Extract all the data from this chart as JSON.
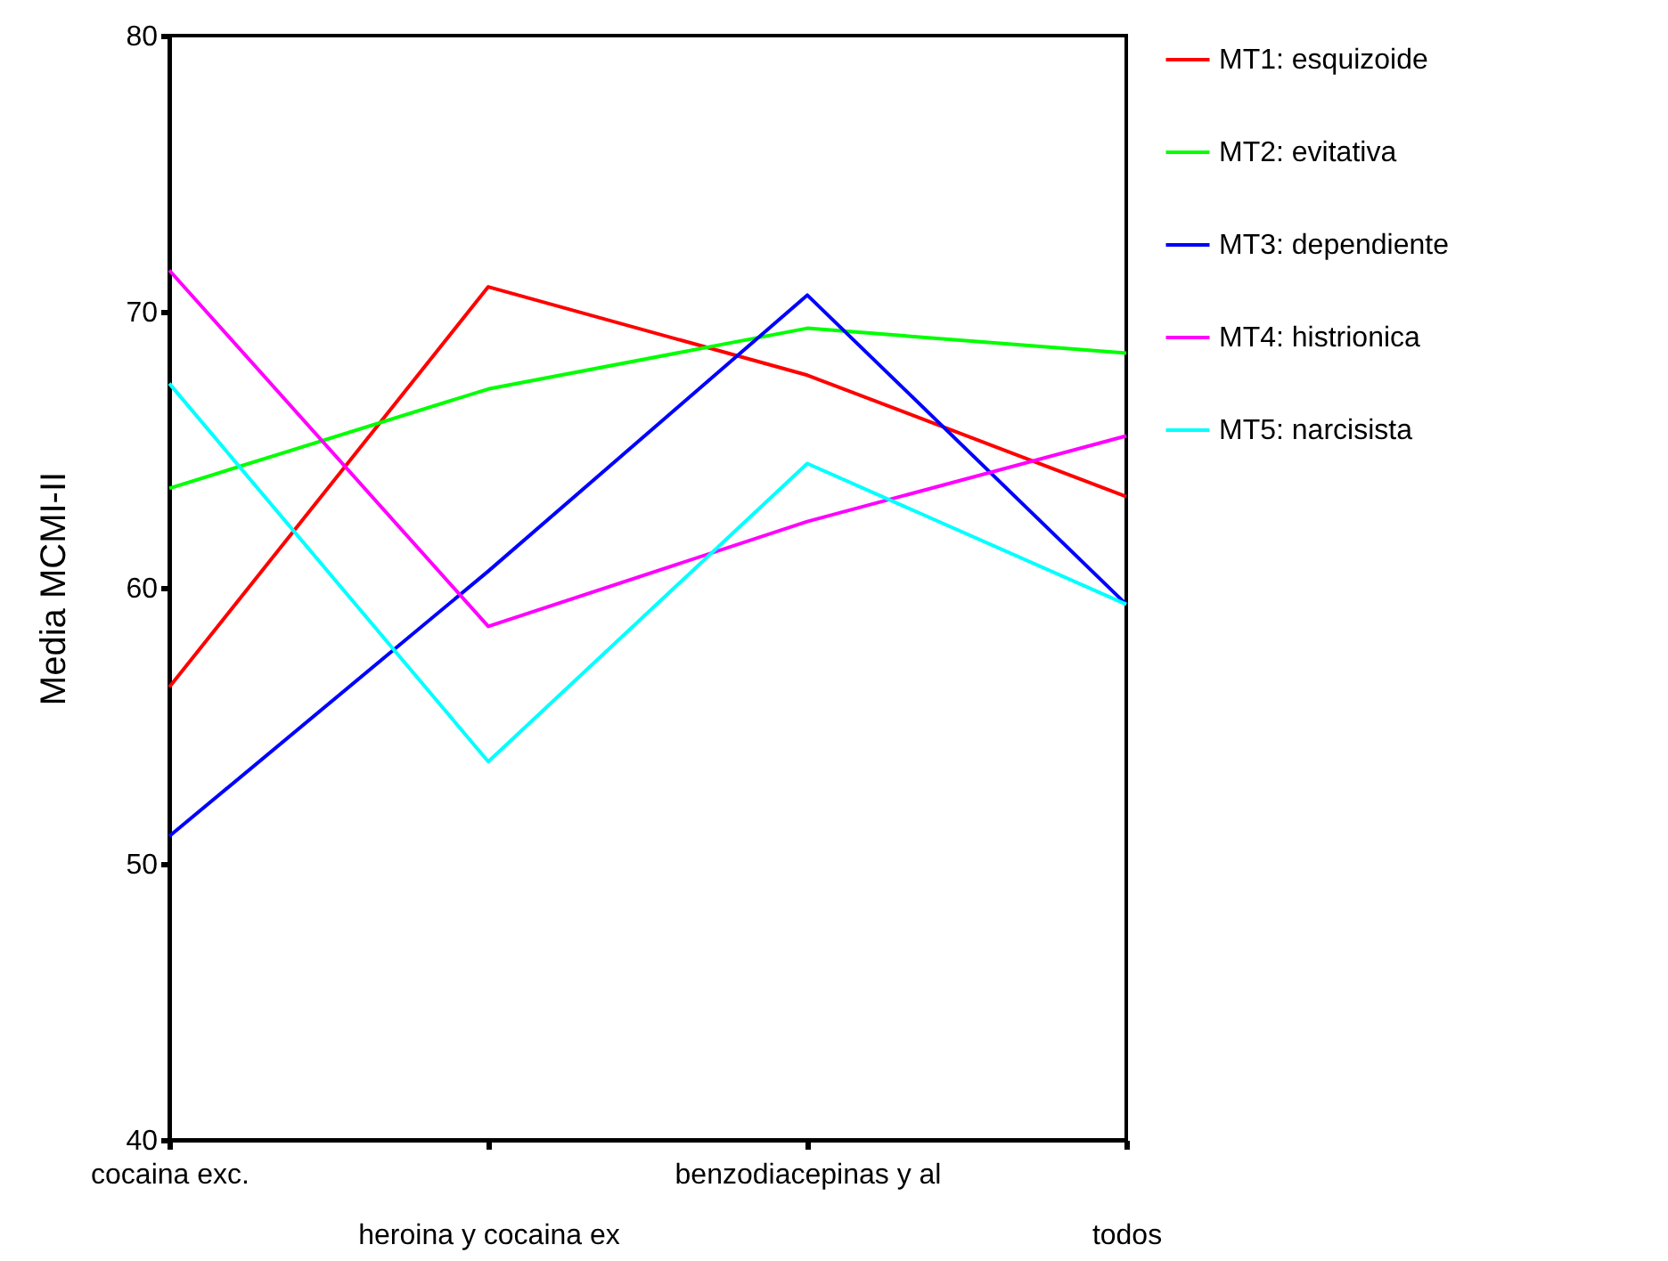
{
  "chart_data": {
    "type": "line",
    "ylabel": "Media MCMI-II",
    "categories": [
      "cocaina exc.",
      "heroina y cocaina ex",
      "benzodiacepinas y al",
      "todos"
    ],
    "ylim": [
      40,
      80
    ],
    "yticks": [
      40,
      50,
      60,
      70,
      80
    ],
    "grid": false,
    "legend": "right",
    "series": [
      {
        "name": "MT1: esquizoide",
        "color": "#ff0000",
        "values": [
          56.4,
          70.9,
          67.7,
          63.3
        ]
      },
      {
        "name": "MT2: evitativa",
        "color": "#00ff00",
        "values": [
          63.6,
          67.2,
          69.4,
          68.5
        ]
      },
      {
        "name": "MT3: dependiente",
        "color": "#0000ff",
        "values": [
          51.0,
          60.6,
          70.6,
          59.4
        ]
      },
      {
        "name": "MT4: histrionica",
        "color": "#ff00ff",
        "values": [
          71.5,
          58.6,
          62.4,
          65.5
        ]
      },
      {
        "name": "MT5: narcisista",
        "color": "#00ffff",
        "values": [
          67.4,
          53.7,
          64.5,
          59.4
        ]
      }
    ]
  }
}
